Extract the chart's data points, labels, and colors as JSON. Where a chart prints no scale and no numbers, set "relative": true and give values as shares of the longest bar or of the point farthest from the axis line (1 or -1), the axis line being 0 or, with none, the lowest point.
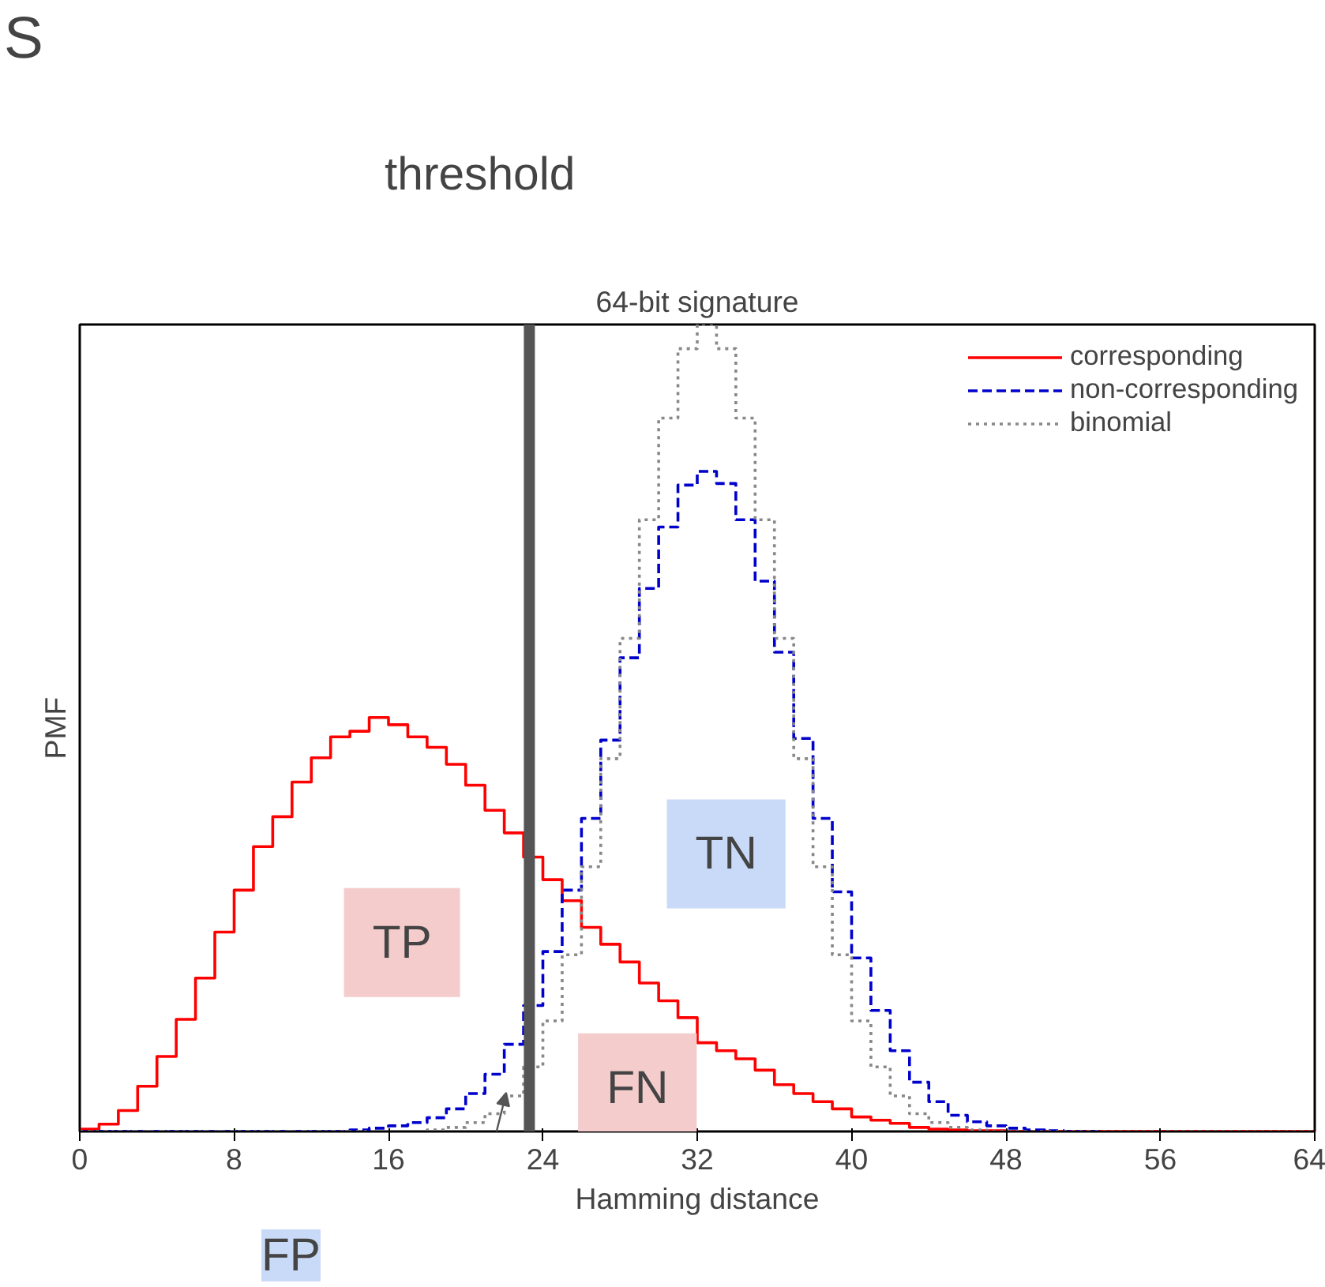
{
  "chart_data": {
    "type": "step",
    "title": "64-bit signature",
    "xlabel": "Hamming distance",
    "ylabel": "PMF",
    "relative": true,
    "x": [
      0,
      1,
      2,
      3,
      4,
      5,
      6,
      7,
      8,
      9,
      10,
      11,
      12,
      13,
      14,
      15,
      16,
      17,
      18,
      19,
      20,
      21,
      22,
      23,
      24,
      25,
      26,
      27,
      28,
      29,
      30,
      31,
      32,
      33,
      34,
      35,
      36,
      37,
      38,
      39,
      40,
      41,
      42,
      43,
      44,
      45,
      46,
      47,
      48,
      49,
      50,
      51,
      52,
      53,
      54,
      55,
      56,
      57,
      58,
      59,
      60,
      61,
      62,
      63,
      64
    ],
    "series": [
      {
        "name": "corresponding",
        "color": "#ff0000",
        "line_style": "solid",
        "values": [
          0.003,
          0.009,
          0.026,
          0.056,
          0.093,
          0.139,
          0.19,
          0.247,
          0.299,
          0.353,
          0.39,
          0.433,
          0.463,
          0.489,
          0.496,
          0.513,
          0.504,
          0.489,
          0.476,
          0.455,
          0.429,
          0.398,
          0.37,
          0.34,
          0.312,
          0.286,
          0.253,
          0.232,
          0.21,
          0.184,
          0.162,
          0.141,
          0.11,
          0.1,
          0.09,
          0.076,
          0.058,
          0.047,
          0.037,
          0.028,
          0.018,
          0.014,
          0.01,
          0.005,
          0.003,
          0.002,
          0.001,
          0.001,
          0,
          0,
          0,
          0,
          0,
          0,
          0,
          0,
          0,
          0,
          0,
          0,
          0,
          0,
          0,
          0,
          0
        ]
      },
      {
        "name": "non-corresponding",
        "color": "#0000cc",
        "line_style": "dashed",
        "x": [
          0,
          1,
          2,
          3,
          4,
          5,
          6,
          7,
          8,
          9,
          10,
          11,
          12,
          13,
          14,
          15,
          16,
          17,
          18,
          19,
          20,
          21,
          22,
          23,
          24,
          25,
          26,
          27,
          28,
          29,
          30,
          31,
          32,
          33,
          34,
          35,
          36,
          37,
          38,
          39,
          40,
          41,
          42,
          43,
          44,
          45,
          46,
          47,
          48,
          49,
          50,
          51,
          52,
          53
        ],
        "values": [
          0,
          0,
          0,
          0,
          0,
          0,
          0,
          0,
          0,
          0,
          0,
          0,
          0,
          0,
          0.002,
          0.004,
          0.007,
          0.011,
          0.017,
          0.028,
          0.047,
          0.071,
          0.108,
          0.156,
          0.223,
          0.299,
          0.388,
          0.485,
          0.587,
          0.673,
          0.749,
          0.801,
          0.818,
          0.803,
          0.758,
          0.682,
          0.594,
          0.487,
          0.388,
          0.297,
          0.215,
          0.15,
          0.1,
          0.061,
          0.037,
          0.02,
          0.012,
          0.007,
          0.004,
          0.002,
          0.001,
          0,
          0,
          0
        ]
      },
      {
        "name": "binomial",
        "color": "#888888",
        "line_style": "dotted",
        "values": [
          0,
          0,
          0,
          0,
          0,
          0,
          0,
          0,
          0,
          0,
          0,
          0,
          0,
          0,
          0,
          0,
          0,
          0,
          0.002,
          0.005,
          0.011,
          0.022,
          0.044,
          0.08,
          0.137,
          0.219,
          0.328,
          0.462,
          0.611,
          0.758,
          0.884,
          0.97,
          1,
          0.97,
          0.884,
          0.758,
          0.611,
          0.462,
          0.328,
          0.219,
          0.137,
          0.08,
          0.044,
          0.022,
          0.011,
          0.005,
          0.002,
          0,
          0,
          0,
          0,
          0,
          0,
          0,
          0,
          0,
          0,
          0,
          0,
          0,
          0,
          0,
          0,
          0,
          0
        ]
      }
    ],
    "xlim": [
      0,
      64
    ],
    "xticks": [
      0,
      8,
      16,
      24,
      32,
      40,
      48,
      56,
      64
    ],
    "ref_lines": [
      {
        "axis": "x",
        "value": 23.3,
        "label": "threshold",
        "color": "#555555"
      }
    ],
    "annotations": [
      "S",
      "TP",
      "FN",
      "TN",
      "FP"
    ],
    "legend": "top right",
    "grid": false
  }
}
